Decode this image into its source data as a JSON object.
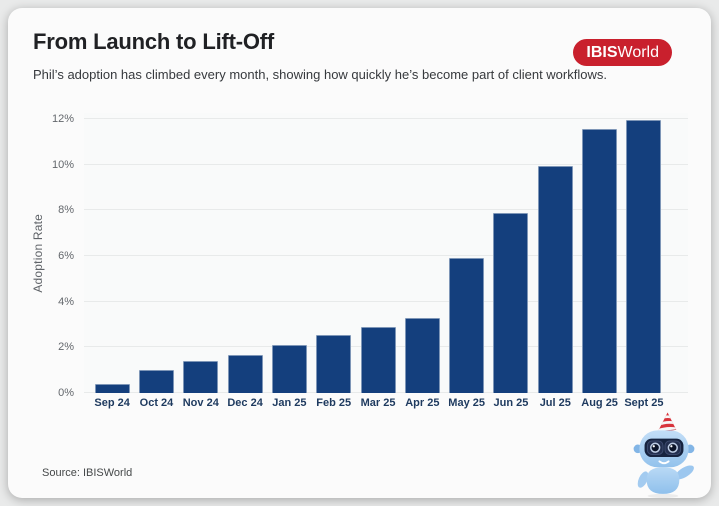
{
  "header": {
    "title": "From Launch to Lift-Off",
    "subtitle": "Phil’s adoption has climbed every month, showing how quickly he’s become part of client workflows."
  },
  "logo": {
    "bold": "IBIS",
    "light": "World",
    "bg_color": "#C9202D"
  },
  "chart_data": {
    "type": "bar",
    "title": "From Launch to Lift-Off",
    "categories": [
      "Sep 24",
      "Oct 24",
      "Nov 24",
      "Dec 24",
      "Jan 25",
      "Feb 25",
      "Mar 25",
      "Apr 25",
      "May 25",
      "Jun 25",
      "Jul 25",
      "Aug 25",
      "Sept 25"
    ],
    "values": [
      0.4,
      1.0,
      1.4,
      1.65,
      2.1,
      2.55,
      2.9,
      3.3,
      5.9,
      7.9,
      9.95,
      11.55,
      11.95
    ],
    "xlabel": "",
    "ylabel": "Adoption Rate",
    "ylim": [
      0,
      12
    ],
    "yticks": [
      0,
      2,
      4,
      6,
      8,
      10,
      12
    ],
    "ytick_suffix": "%",
    "grid": "horizontal",
    "legend": "none",
    "bar_color": "#143F7D"
  },
  "footer": {
    "source": "Source: IBISWorld"
  },
  "colors": {
    "bar": "#143F7D",
    "logo_red": "#C9202D",
    "card_bg": "#FBFBFB",
    "grid_line": "#E8EAEA",
    "xlabel_text": "#1E3A5F",
    "ytick_text": "#63676C"
  },
  "mascot": {
    "name": "phil-robot-mascot"
  }
}
